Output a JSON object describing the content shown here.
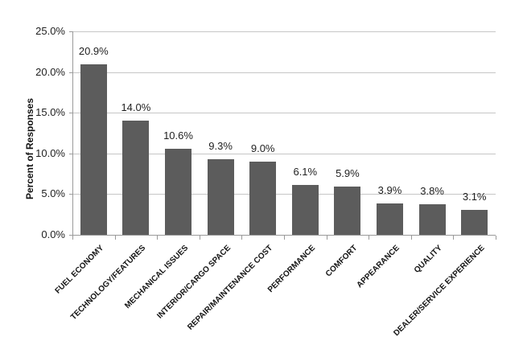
{
  "chart_data": {
    "type": "bar",
    "title": "",
    "xlabel": "",
    "ylabel": "Percent of Responses",
    "categories": [
      "FUEL ECONOMY",
      "TECHNOLOGY/FEATURES",
      "MECHANICAL ISSUES",
      "INTERIOR/CARGO SPACE",
      "REPAIR/MAINTENANCE COST",
      "PERFORMANCE",
      "COMFORT",
      "APPEARANCE",
      "QUALITY",
      "DEALER/SERVICE EXPERIENCE"
    ],
    "values": [
      20.9,
      14.0,
      10.6,
      9.3,
      9.0,
      6.1,
      5.9,
      3.9,
      3.8,
      3.1
    ],
    "value_labels": [
      "20.9%",
      "14.0%",
      "10.6%",
      "9.3%",
      "9.0%",
      "6.1%",
      "5.9%",
      "3.9%",
      "3.8%",
      "3.1%"
    ],
    "ylim": [
      0,
      25
    ],
    "ytick_step": 5,
    "ytick_labels": [
      "0.0%",
      "5.0%",
      "10.0%",
      "15.0%",
      "20.0%",
      "25.0%"
    ],
    "grid": true,
    "legend": "none",
    "colors": {
      "bar": "#5c5c5c",
      "gridline": "#c6c6c6",
      "axis": "#9a9a9a",
      "data_label": "#1f1f1f",
      "tick_label": "#1f1f1f",
      "category_label": "#141414",
      "background": "#ffffff"
    }
  }
}
